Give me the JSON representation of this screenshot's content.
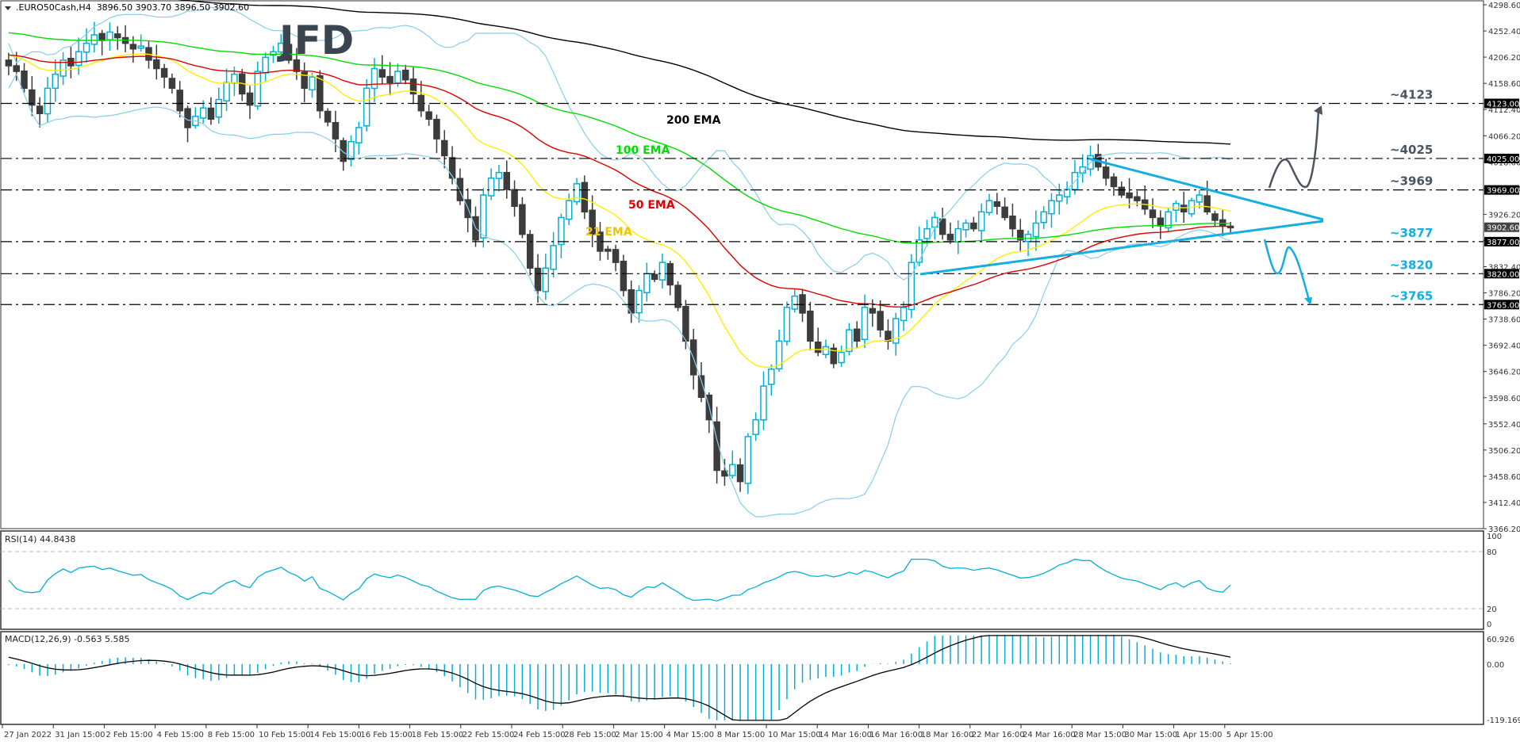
{
  "header": {
    "symbol_title": ".EURO50Cash,H4",
    "ohlc": "3896.50 3903.70 3896.50 3902.60"
  },
  "logo": {
    "text": "JFD"
  },
  "indicators": {
    "rsi_label": "RSI(14) 44.8438",
    "macd_label": "MACD(12,26,9) -0.563 5.585"
  },
  "colors": {
    "bull": "#00b0d6",
    "bear": "#3c3c3c",
    "ema21": "#ffee00",
    "ema50": "#dd0000",
    "ema100": "#00dd00",
    "ema200": "#000000",
    "bollinger": "#87ceeb",
    "trendline": "#14aee0",
    "label_gray": "#4a5560",
    "label_cyan": "#14aee0"
  },
  "chart_data": {
    "type": "candlestick",
    "title": ".EURO50Cash,H4",
    "ylim": [
      3366.2,
      4298.6
    ],
    "price_ticks": [
      "4298.60",
      "4252.40",
      "4206.20",
      "4158.60",
      "4112.40",
      "4066.20",
      "4018.00",
      "3972.00",
      "3926.20",
      "3878.60",
      "3832.40",
      "3786.20",
      "3738.60",
      "3692.40",
      "3646.20",
      "3598.60",
      "3552.40",
      "3506.20",
      "3458.60",
      "3412.40",
      "3366.20"
    ],
    "x_labels": [
      "27 Jan 2022",
      "31 Jan 15:00",
      "2 Feb 15:00",
      "4 Feb 15:00",
      "8 Feb 15:00",
      "10 Feb 15:00",
      "14 Feb 15:00",
      "16 Feb 15:00",
      "18 Feb 15:00",
      "22 Feb 15:00",
      "24 Feb 15:00",
      "28 Feb 15:00",
      "2 Mar 15:00",
      "4 Mar 15:00",
      "8 Mar 15:00",
      "10 Mar 15:00",
      "14 Mar 16:00",
      "16 Mar 16:00",
      "18 Mar 16:00",
      "22 Mar 16:00",
      "24 Mar 16:00",
      "28 Mar 15:00",
      "30 Mar 15:00",
      "1 Apr 15:00",
      "5 Apr 15:00"
    ],
    "current_price": 3902.6,
    "levels": [
      {
        "value": 4123,
        "label": "~4123",
        "tag": "4123.00",
        "color": "#4a5560"
      },
      {
        "value": 4025,
        "label": "~4025",
        "tag": "4025.00",
        "color": "#4a5560"
      },
      {
        "value": 3969,
        "label": "~3969",
        "tag": "3969.00",
        "color": "#4a5560"
      },
      {
        "value": 3877,
        "label": "~3877",
        "tag": "3877.00",
        "color": "#14aee0"
      },
      {
        "value": 3820,
        "label": "~3820",
        "tag": "3820.00",
        "color": "#14aee0"
      },
      {
        "value": 3765,
        "label": "~3765",
        "tag": "3765.00",
        "color": "#14aee0"
      }
    ],
    "annotations": [
      {
        "text": "200 EMA",
        "color": "#000000"
      },
      {
        "text": "100 EMA",
        "color": "#00dd00"
      },
      {
        "text": "50 EMA",
        "color": "#dd0000"
      },
      {
        "text": "21 EMA",
        "color": "#f0c400"
      }
    ],
    "closes": [
      4190,
      4180,
      4150,
      4120,
      4105,
      4150,
      4175,
      4200,
      4190,
      4215,
      4230,
      4245,
      4235,
      4250,
      4240,
      4230,
      4220,
      4225,
      4200,
      4185,
      4170,
      4150,
      4110,
      4080,
      4100,
      4115,
      4095,
      4130,
      4160,
      4175,
      4140,
      4120,
      4180,
      4205,
      4215,
      4230,
      4200,
      4180,
      4150,
      4170,
      4110,
      4090,
      4060,
      4020,
      4055,
      4080,
      4150,
      4185,
      4170,
      4160,
      4180,
      4165,
      4140,
      4110,
      4095,
      4060,
      4030,
      3990,
      3950,
      3920,
      3880,
      3960,
      3990,
      4000,
      3970,
      3940,
      3890,
      3830,
      3790,
      3830,
      3870,
      3920,
      3950,
      3980,
      3930,
      3890,
      3860,
      3860,
      3840,
      3790,
      3750,
      3790,
      3820,
      3810,
      3840,
      3800,
      3760,
      3700,
      3640,
      3600,
      3560,
      3470,
      3460,
      3480,
      3450,
      3530,
      3560,
      3620,
      3650,
      3700,
      3760,
      3780,
      3750,
      3700,
      3680,
      3690,
      3660,
      3680,
      3720,
      3700,
      3760,
      3750,
      3720,
      3700,
      3740,
      3760,
      3840,
      3880,
      3900,
      3920,
      3890,
      3880,
      3900,
      3910,
      3900,
      3930,
      3950,
      3940,
      3920,
      3900,
      3880,
      3890,
      3910,
      3930,
      3950,
      3960,
      3970,
      4000,
      4010,
      4030,
      4010,
      3990,
      3975,
      3960,
      3955,
      3950,
      3935,
      3920,
      3905,
      3930,
      3945,
      3930,
      3950,
      3960,
      3930,
      3915,
      3905,
      3902.6
    ],
    "rsi": {
      "ylim": [
        0,
        100
      ],
      "levels": [
        20,
        80
      ],
      "last": 44.8438
    },
    "macd": {
      "ylim": [
        -119.169,
        60.926
      ],
      "params": [
        12,
        26,
        9
      ],
      "main": -0.563,
      "signal": 5.585
    }
  }
}
